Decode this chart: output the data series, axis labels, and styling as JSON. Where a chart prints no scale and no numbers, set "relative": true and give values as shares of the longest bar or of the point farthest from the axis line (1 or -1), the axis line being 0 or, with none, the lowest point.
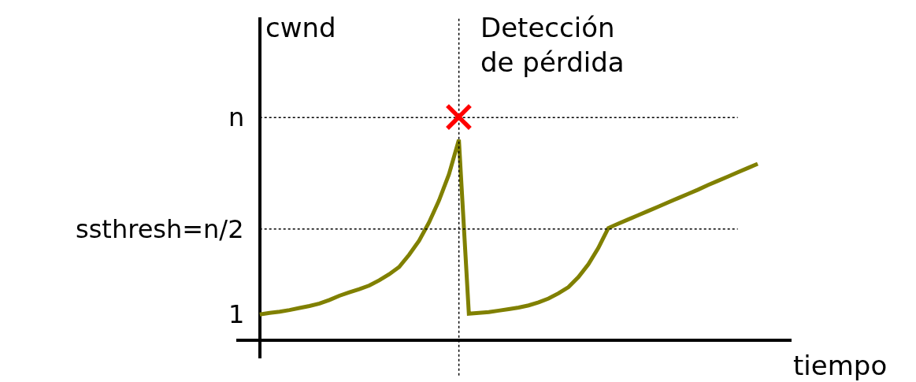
{
  "chart_data": {
    "type": "line",
    "xlabel": "tiempo",
    "ylabel": "cwnd",
    "relative": true,
    "tick_labels": false,
    "categories": [
      null,
      null,
      null,
      null,
      null,
      null,
      null,
      null,
      null,
      null,
      null,
      null,
      null,
      null,
      null,
      null,
      null,
      null,
      null,
      null,
      null,
      null,
      null,
      null,
      null,
      null,
      null,
      null,
      null,
      null,
      null,
      null,
      null,
      null,
      null,
      null,
      null,
      null,
      null,
      null,
      null,
      null,
      null,
      null,
      null,
      null,
      null,
      null,
      null,
      null,
      null
    ],
    "series": [
      {
        "color": "#808000",
        "values": [
          0.13,
          0.138,
          0.144,
          0.152,
          0.162,
          0.172,
          0.184,
          0.202,
          0.223,
          0.24,
          0.256,
          0.274,
          0.3,
          0.33,
          0.366,
          0.427,
          0.497,
          0.588,
          0.697,
          0.827,
          1,
          0.134,
          0.138,
          0.142,
          0.149,
          0.156,
          0.164,
          0.175,
          0.19,
          0.209,
          0.235,
          0.266,
          0.316,
          0.38,
          0.461,
          0.56,
          0.582,
          0.603,
          0.624,
          0.645,
          0.666,
          0.688,
          0.709,
          0.73,
          0.751,
          0.774,
          0.795,
          0.816,
          0.838,
          0.859,
          0.88
        ]
      }
    ],
    "annotations": [
      "1",
      {
        "text": "✕",
        "y": 1.11
      }
    ],
    "ref_lines": [
      {
        "axis": "y",
        "value": 1.11,
        "line_style": "dotted",
        "color": "#000000",
        "label": "n"
      },
      {
        "axis": "y",
        "value": 0.555,
        "line_style": "dotted",
        "color": "#000000",
        "label": "ssthresh=n/2"
      },
      {
        "axis": "x",
        "line_style": "dotted",
        "color": "#000000",
        "label": "Detección\nde pérdida"
      }
    ]
  }
}
